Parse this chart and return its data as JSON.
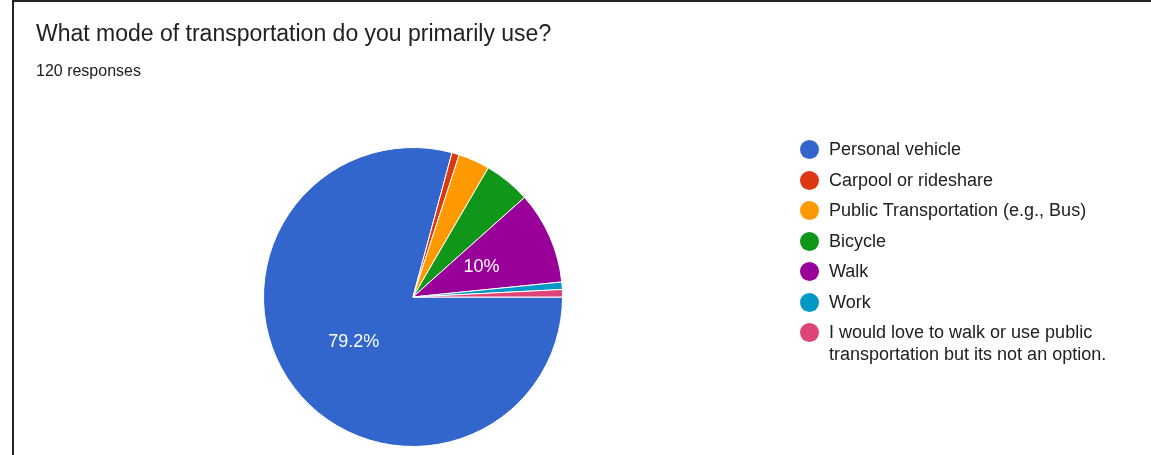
{
  "chart_data": {
    "type": "pie",
    "title": "What mode of transportation do you primarily use?",
    "subtitle": "120 responses",
    "categories": [
      "Personal vehicle",
      "Carpool or rideshare",
      "Public Transportation (e.g., Bus)",
      "Bicycle",
      "Walk",
      "Work",
      "I would love to walk or use public transportation but its not an option."
    ],
    "values": [
      79.2,
      0.8,
      3.4,
      5,
      10,
      0.8,
      0.8
    ],
    "colors": [
      "#3366cc",
      "#dc3912",
      "#ff9900",
      "#109618",
      "#990099",
      "#0099c6",
      "#dd4477"
    ],
    "value_labels": [
      "79.2%",
      null,
      null,
      null,
      "10%",
      null,
      null
    ],
    "legend": "right"
  }
}
